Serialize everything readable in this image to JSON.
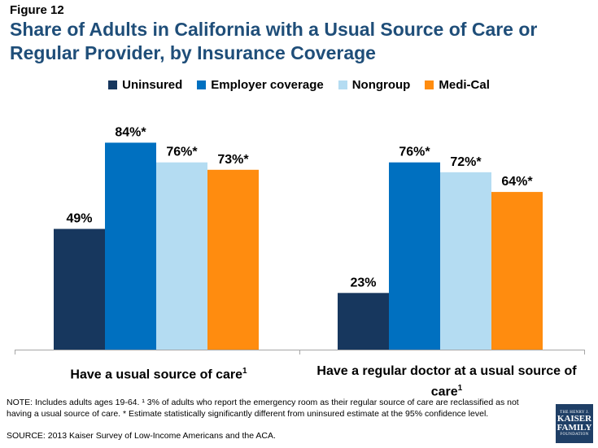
{
  "figure_label": "Figure 12",
  "colors": {
    "title": "#1f4e79",
    "uninsured": "#17375e",
    "employer": "#0070c0",
    "nongroup": "#b4dcf2",
    "medical": "#ff8c0f",
    "axis": "#a6a6a6"
  },
  "chart_data": {
    "type": "bar",
    "title": "Share of Adults in California with a Usual Source of Care or Regular Provider, by Insurance Coverage",
    "categories": [
      "Have a usual source of care",
      "Have a regular doctor at a usual source of care"
    ],
    "category_superscripts": [
      "1",
      "1"
    ],
    "series": [
      {
        "name": "Uninsured",
        "values": [
          49,
          23
        ],
        "labels": [
          "49%",
          "23%"
        ]
      },
      {
        "name": "Employer coverage",
        "values": [
          84,
          76
        ],
        "labels": [
          "84%*",
          "76%*"
        ]
      },
      {
        "name": "Nongroup",
        "values": [
          76,
          72
        ],
        "labels": [
          "76%*",
          "72%*"
        ]
      },
      {
        "name": "Medi-Cal",
        "values": [
          73,
          64
        ],
        "labels": [
          "73%*",
          "64%*"
        ]
      }
    ],
    "ylim": [
      0,
      100
    ],
    "grid": false,
    "legend_position": "top"
  },
  "footer": {
    "note": "NOTE: Includes adults ages 19-64. ¹ 3% of adults who report the emergency room as their regular source of care are reclassified as not having a usual source of care. * Estimate statistically significantly different from uninsured estimate  at the 95% confidence level.",
    "source": "SOURCE: 2013 Kaiser Survey of Low-Income Americans and the ACA."
  },
  "logo": {
    "line1": "THE HENRY J.",
    "line2": "KAISER",
    "line3": "FAMILY",
    "line4": "FOUNDATION"
  }
}
